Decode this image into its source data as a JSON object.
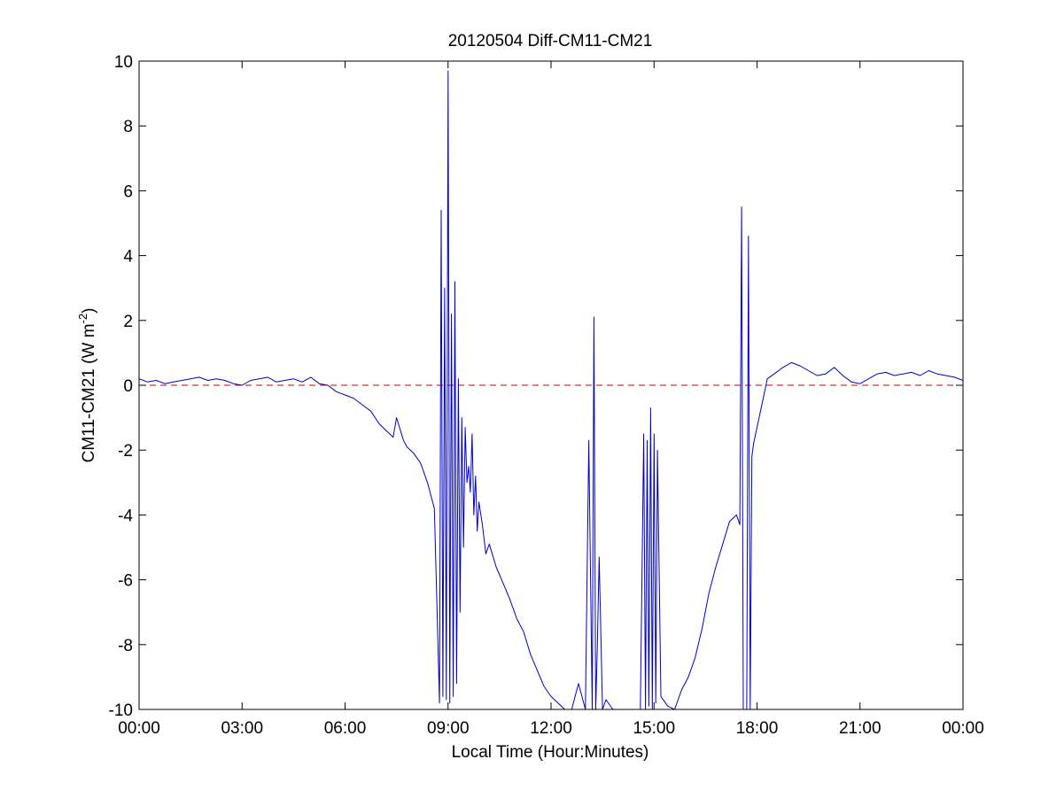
{
  "chart_data": {
    "type": "line",
    "title": "20120504 Diff-CM11-CM21",
    "xlabel": "Local Time (Hour:Minutes)",
    "ylabel_main": "CM11-CM21 (W m",
    "ylabel_sup": "-2",
    "ylabel_close": ")",
    "xlim": [
      0,
      24
    ],
    "ylim": [
      -10,
      10
    ],
    "grid": false,
    "x_ticks": [
      {
        "value": 0,
        "label": "00:00"
      },
      {
        "value": 3,
        "label": "03:00"
      },
      {
        "value": 6,
        "label": "06:00"
      },
      {
        "value": 9,
        "label": "09:00"
      },
      {
        "value": 12,
        "label": "12:00"
      },
      {
        "value": 15,
        "label": "15:00"
      },
      {
        "value": 18,
        "label": "18:00"
      },
      {
        "value": 21,
        "label": "21:00"
      },
      {
        "value": 24,
        "label": "00:00"
      }
    ],
    "y_ticks": [
      {
        "value": -10,
        "label": "-10"
      },
      {
        "value": -8,
        "label": "-8"
      },
      {
        "value": -6,
        "label": "-6"
      },
      {
        "value": -4,
        "label": "-4"
      },
      {
        "value": -2,
        "label": "-2"
      },
      {
        "value": 0,
        "label": "0"
      },
      {
        "value": 2,
        "label": "2"
      },
      {
        "value": 4,
        "label": "4"
      },
      {
        "value": 6,
        "label": "6"
      },
      {
        "value": 8,
        "label": "8"
      },
      {
        "value": 10,
        "label": "10"
      }
    ],
    "reference_line": {
      "y": 0,
      "color": "#cc0000",
      "style": "dashed"
    },
    "series": [
      {
        "color": "#0000cc",
        "x": [
          0.0,
          0.25,
          0.5,
          0.75,
          1.0,
          1.25,
          1.5,
          1.75,
          2.0,
          2.25,
          2.5,
          2.75,
          3.0,
          3.25,
          3.5,
          3.75,
          4.0,
          4.25,
          4.5,
          4.75,
          5.0,
          5.25,
          5.5,
          5.75,
          6.0,
          6.25,
          6.5,
          6.75,
          7.0,
          7.2,
          7.4,
          7.5,
          7.7,
          7.8,
          8.0,
          8.2,
          8.4,
          8.6,
          8.75,
          8.8,
          8.85,
          8.9,
          8.95,
          9.0,
          9.05,
          9.1,
          9.15,
          9.2,
          9.25,
          9.3,
          9.35,
          9.4,
          9.45,
          9.5,
          9.55,
          9.6,
          9.65,
          9.7,
          9.75,
          9.8,
          9.85,
          9.9,
          10.0,
          10.1,
          10.2,
          10.4,
          10.6,
          10.8,
          11.0,
          11.2,
          11.4,
          11.6,
          11.8,
          12.0,
          12.2,
          12.4,
          12.6,
          12.8,
          13.0,
          13.1,
          13.2,
          13.25,
          13.3,
          13.35,
          13.4,
          13.5,
          13.6,
          13.8,
          14.0,
          14.2,
          14.4,
          14.6,
          14.7,
          14.75,
          14.8,
          14.85,
          14.9,
          14.95,
          15.0,
          15.05,
          15.1,
          15.2,
          15.4,
          15.6,
          15.8,
          16.0,
          16.2,
          16.4,
          16.6,
          16.8,
          17.0,
          17.2,
          17.4,
          17.5,
          17.55,
          17.6,
          17.7,
          17.75,
          17.8,
          17.85,
          17.9,
          18.0,
          18.1,
          18.2,
          18.3,
          18.5,
          18.75,
          19.0,
          19.25,
          19.5,
          19.75,
          20.0,
          20.25,
          20.5,
          20.75,
          21.0,
          21.25,
          21.5,
          21.75,
          22.0,
          22.25,
          22.5,
          22.75,
          23.0,
          23.25,
          23.5,
          23.75,
          24.0
        ],
        "y": [
          0.2,
          0.1,
          0.15,
          0.05,
          0.1,
          0.15,
          0.2,
          0.25,
          0.15,
          0.2,
          0.15,
          0.05,
          0.0,
          0.15,
          0.2,
          0.25,
          0.1,
          0.15,
          0.2,
          0.1,
          0.25,
          0.05,
          0.0,
          -0.2,
          -0.3,
          -0.4,
          -0.6,
          -0.8,
          -1.2,
          -1.4,
          -1.6,
          -1.0,
          -1.7,
          -1.9,
          -2.1,
          -2.4,
          -3.0,
          -3.8,
          -9.8,
          5.4,
          -9.6,
          3.0,
          -9.7,
          9.7,
          -9.8,
          2.2,
          -9.6,
          3.2,
          -9.2,
          0.2,
          -7.0,
          -1.0,
          -5.0,
          -1.3,
          -3.0,
          -2.5,
          -3.3,
          -1.5,
          -4.0,
          -2.8,
          -4.5,
          -3.6,
          -4.3,
          -5.2,
          -4.9,
          -5.6,
          -6.1,
          -6.6,
          -7.2,
          -7.6,
          -8.3,
          -8.8,
          -9.3,
          -9.6,
          -9.8,
          -10.0,
          -10.0,
          -9.2,
          -10.0,
          -1.7,
          -10.0,
          2.1,
          -10.0,
          -8.0,
          -5.3,
          -10.0,
          -9.7,
          -10.0,
          -10.0,
          -10.0,
          -10.0,
          -10.0,
          -1.5,
          -10.0,
          -1.7,
          -9.9,
          -0.7,
          -10.0,
          -1.5,
          -9.8,
          -2.0,
          -9.6,
          -9.9,
          -10.0,
          -9.4,
          -9.0,
          -8.4,
          -7.5,
          -6.4,
          -5.6,
          -4.9,
          -4.2,
          -4.0,
          -4.3,
          5.5,
          -10.0,
          -10.0,
          4.6,
          -10.0,
          -2.2,
          -1.8,
          -1.3,
          -0.8,
          -0.3,
          0.2,
          0.35,
          0.55,
          0.7,
          0.6,
          0.45,
          0.3,
          0.35,
          0.55,
          0.3,
          0.1,
          0.05,
          0.2,
          0.35,
          0.4,
          0.3,
          0.35,
          0.4,
          0.3,
          0.45,
          0.35,
          0.3,
          0.25,
          0.15
        ]
      }
    ]
  }
}
